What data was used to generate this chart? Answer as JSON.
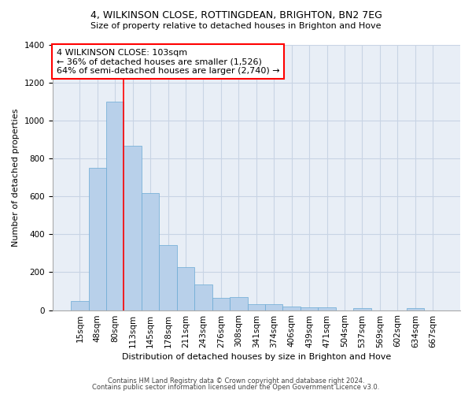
{
  "title": "4, WILKINSON CLOSE, ROTTINGDEAN, BRIGHTON, BN2 7EG",
  "subtitle": "Size of property relative to detached houses in Brighton and Hove",
  "xlabel": "Distribution of detached houses by size in Brighton and Hove",
  "ylabel": "Number of detached properties",
  "footer1": "Contains HM Land Registry data © Crown copyright and database right 2024.",
  "footer2": "Contains public sector information licensed under the Open Government Licence v3.0.",
  "categories": [
    "15sqm",
    "48sqm",
    "80sqm",
    "113sqm",
    "145sqm",
    "178sqm",
    "211sqm",
    "243sqm",
    "276sqm",
    "308sqm",
    "341sqm",
    "374sqm",
    "406sqm",
    "439sqm",
    "471sqm",
    "504sqm",
    "537sqm",
    "569sqm",
    "602sqm",
    "634sqm",
    "667sqm"
  ],
  "values": [
    50,
    750,
    1100,
    865,
    615,
    345,
    225,
    135,
    65,
    70,
    30,
    30,
    20,
    15,
    15,
    0,
    10,
    0,
    0,
    10,
    0
  ],
  "bar_color": "#b8d0ea",
  "bar_edge_color": "#6aaad4",
  "grid_color": "#c8d4e4",
  "bg_color": "#e8eef6",
  "annotation_box_text1": "4 WILKINSON CLOSE: 103sqm",
  "annotation_box_text2": "← 36% of detached houses are smaller (1,526)",
  "annotation_box_text3": "64% of semi-detached houses are larger (2,740) →",
  "ylim": [
    0,
    1400
  ],
  "yticks": [
    0,
    200,
    400,
    600,
    800,
    1000,
    1200,
    1400
  ],
  "title_fontsize": 9,
  "subtitle_fontsize": 8,
  "ylabel_fontsize": 8,
  "xlabel_fontsize": 8,
  "tick_fontsize": 7.5,
  "footer_fontsize": 6,
  "annot_fontsize": 8
}
